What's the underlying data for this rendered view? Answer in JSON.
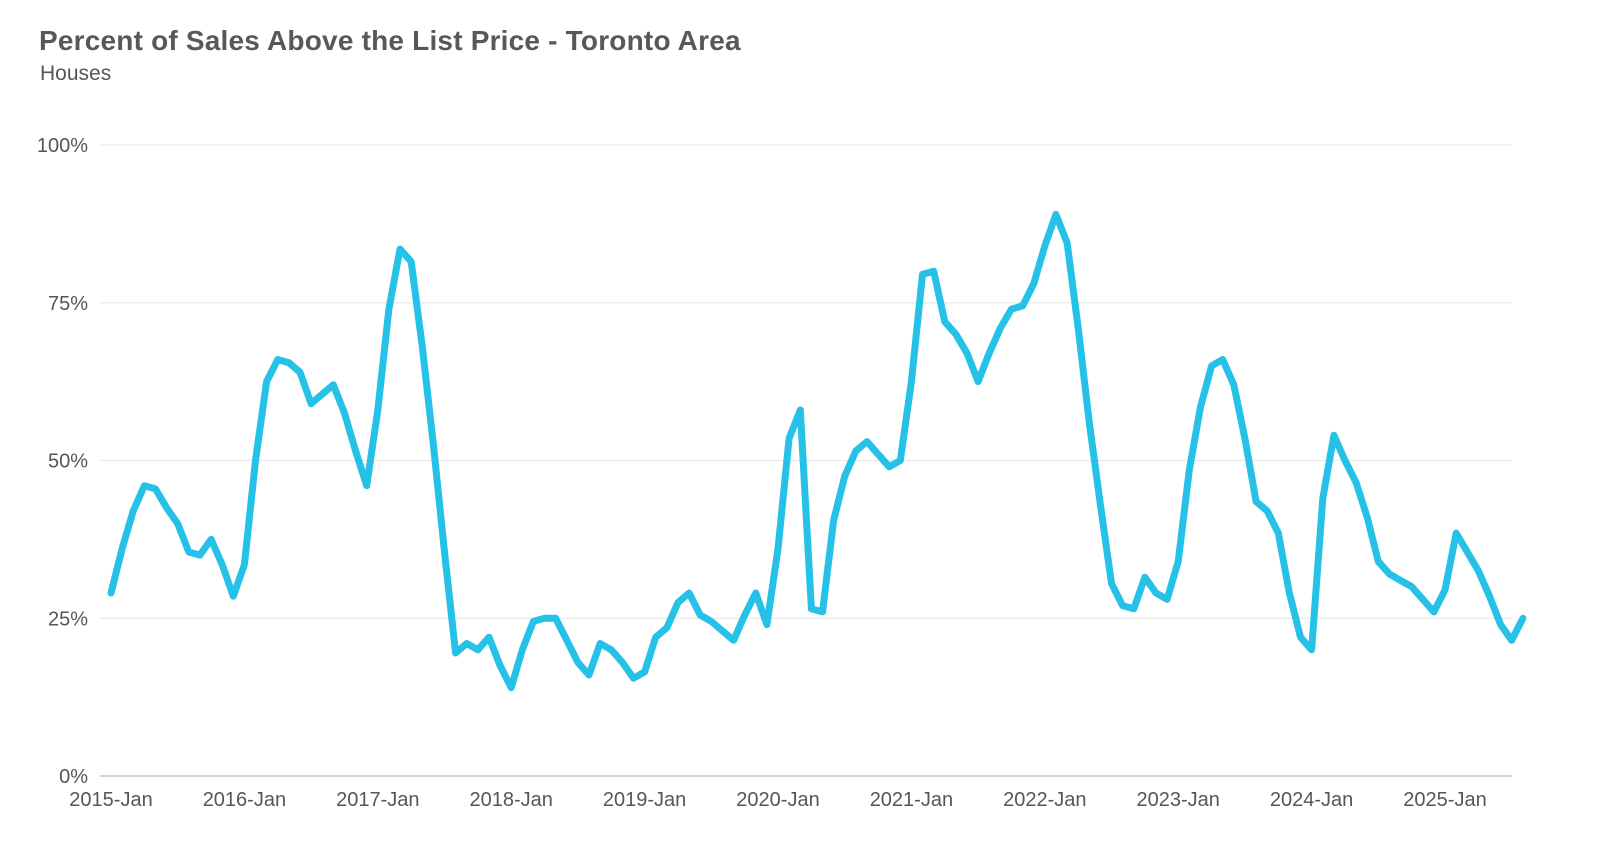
{
  "header": {
    "title": "Percent of Sales Above the List Price - Toronto Area",
    "subtitle": "Houses"
  },
  "chart_data": {
    "type": "line",
    "title": "Percent of Sales Above the List Price - Toronto Area",
    "subtitle": "Houses",
    "xlabel": "",
    "ylabel": "",
    "ylim": [
      0,
      100
    ],
    "grid": "horizontal",
    "legend": "none",
    "line_color": "#26c1e7",
    "y_ticks": [
      0,
      25,
      50,
      75,
      100
    ],
    "y_tick_labels": [
      "0%",
      "25%",
      "50%",
      "75%",
      "100%"
    ],
    "x_tick_labels": [
      "2015-Jan",
      "2016-Jan",
      "2017-Jan",
      "2018-Jan",
      "2019-Jan",
      "2020-Jan",
      "2021-Jan",
      "2022-Jan",
      "2023-Jan",
      "2024-Jan",
      "2025-Jan"
    ],
    "series": [
      {
        "name": "Houses",
        "unit": "%",
        "start": "2015-Jan",
        "end": "2025-Aug",
        "frequency": "monthly",
        "values": [
          29,
          36,
          42,
          46,
          45.5,
          42.5,
          40,
          35.5,
          35,
          37.5,
          33.5,
          28.5,
          33.5,
          50,
          62.5,
          66,
          65.5,
          64,
          59,
          60.5,
          62,
          57.5,
          51.5,
          46,
          58,
          74,
          83.5,
          81.5,
          68,
          52.5,
          35.5,
          19.5,
          21,
          20,
          22,
          17.5,
          14,
          20,
          24.5,
          25,
          25,
          21.5,
          18,
          16,
          21,
          20,
          18,
          15.5,
          16.5,
          22,
          23.5,
          27.5,
          29,
          25.5,
          24.5,
          23,
          21.5,
          25.5,
          29,
          24,
          36,
          53.5,
          58,
          26.5,
          26,
          40.5,
          47.5,
          51.5,
          53,
          51,
          49,
          50,
          62.5,
          79.5,
          80,
          72,
          70,
          67,
          62.5,
          67,
          71,
          74,
          74.5,
          78,
          84,
          89,
          84.5,
          71,
          56,
          43,
          30.5,
          27,
          26.5,
          31.5,
          29,
          28,
          34,
          48.5,
          58.5,
          65,
          66,
          62,
          53.5,
          43.5,
          42,
          38.5,
          29,
          22,
          20,
          44,
          54,
          50,
          46.5,
          41,
          34,
          32,
          31,
          30,
          28,
          26,
          29.5,
          38.5,
          35.5,
          32.5,
          28.5,
          24,
          21.5,
          25
        ]
      }
    ]
  }
}
